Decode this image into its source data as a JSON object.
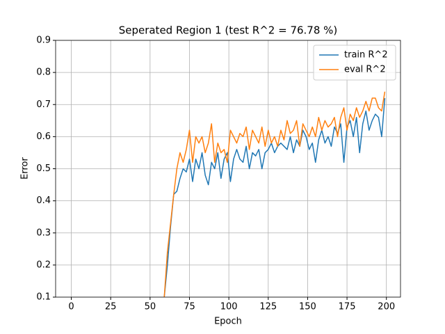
{
  "chart_data": {
    "type": "line",
    "title": "Seperated Region 1 (test R^2 = 76.78 %)",
    "x_label": "Epoch",
    "y_label": "Error",
    "x": [
      59,
      61,
      63,
      65,
      67,
      69,
      71,
      73,
      75,
      77,
      79,
      81,
      83,
      85,
      87,
      89,
      91,
      93,
      95,
      97,
      99,
      101,
      103,
      105,
      107,
      109,
      111,
      113,
      115,
      117,
      119,
      121,
      123,
      125,
      127,
      129,
      131,
      133,
      135,
      137,
      139,
      141,
      143,
      145,
      147,
      149,
      151,
      153,
      155,
      157,
      159,
      161,
      163,
      165,
      167,
      169,
      171,
      173,
      175,
      177,
      179,
      181,
      183,
      185,
      187,
      189,
      191,
      193,
      195,
      197,
      199
    ],
    "series": [
      {
        "name": "train R^2",
        "color": "#1f77b4",
        "values": [
          0.1,
          0.2,
          0.32,
          0.42,
          0.43,
          0.47,
          0.5,
          0.49,
          0.53,
          0.46,
          0.53,
          0.5,
          0.55,
          0.48,
          0.45,
          0.52,
          0.5,
          0.55,
          0.47,
          0.53,
          0.55,
          0.46,
          0.53,
          0.56,
          0.53,
          0.52,
          0.57,
          0.5,
          0.55,
          0.54,
          0.56,
          0.5,
          0.55,
          0.56,
          0.58,
          0.55,
          0.57,
          0.58,
          0.57,
          0.56,
          0.6,
          0.55,
          0.59,
          0.57,
          0.62,
          0.6,
          0.56,
          0.58,
          0.52,
          0.59,
          0.62,
          0.58,
          0.6,
          0.57,
          0.63,
          0.61,
          0.64,
          0.52,
          0.63,
          0.65,
          0.6,
          0.66,
          0.55,
          0.64,
          0.68,
          0.62,
          0.65,
          0.67,
          0.66,
          0.6,
          0.72
        ]
      },
      {
        "name": "eval R^2",
        "color": "#ff7f0e",
        "values": [
          0.1,
          0.24,
          0.33,
          0.42,
          0.5,
          0.55,
          0.52,
          0.56,
          0.62,
          0.52,
          0.6,
          0.58,
          0.6,
          0.55,
          0.58,
          0.64,
          0.52,
          0.58,
          0.55,
          0.56,
          0.52,
          0.62,
          0.6,
          0.58,
          0.61,
          0.6,
          0.63,
          0.56,
          0.62,
          0.6,
          0.58,
          0.63,
          0.57,
          0.62,
          0.58,
          0.6,
          0.57,
          0.62,
          0.59,
          0.65,
          0.61,
          0.62,
          0.65,
          0.57,
          0.64,
          0.62,
          0.6,
          0.63,
          0.6,
          0.66,
          0.62,
          0.65,
          0.63,
          0.64,
          0.66,
          0.6,
          0.66,
          0.69,
          0.62,
          0.67,
          0.65,
          0.69,
          0.66,
          0.68,
          0.71,
          0.68,
          0.72,
          0.72,
          0.69,
          0.68,
          0.74
        ]
      }
    ],
    "xlim": [
      -9.95,
      208.95
    ],
    "ylim": [
      0.1,
      0.9
    ],
    "xticks": [
      0,
      25,
      50,
      75,
      100,
      125,
      150,
      175,
      200
    ],
    "yticks": [
      0.1,
      0.2,
      0.3,
      0.4,
      0.5,
      0.6,
      0.7,
      0.8,
      0.9
    ],
    "grid": true,
    "legend": "upper right"
  }
}
